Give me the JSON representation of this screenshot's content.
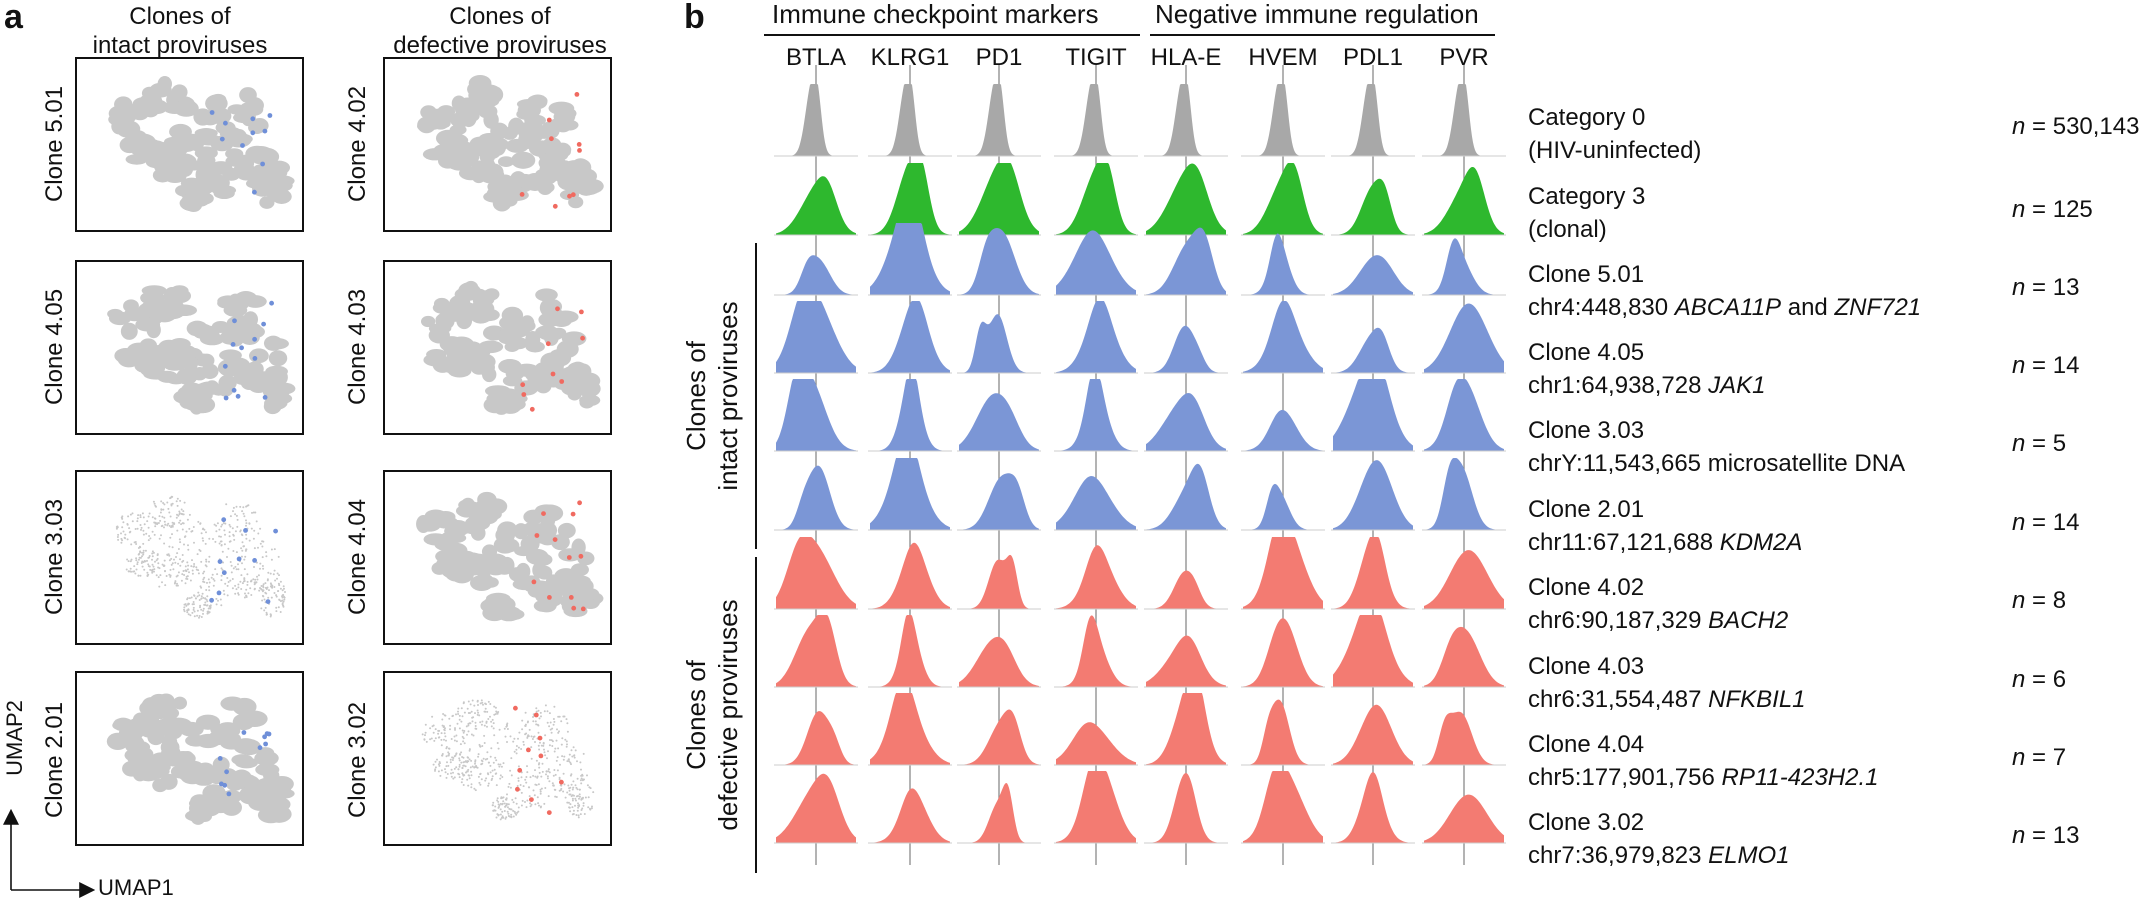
{
  "panel_a": {
    "letter": "a",
    "col_intact_title_1": "Clones of",
    "col_intact_title_2": "intact proviruses",
    "col_defective_title_1": "Clones of",
    "col_defective_title_2": "defective proviruses",
    "intact_clones": [
      "Clone 5.01",
      "Clone 4.05",
      "Clone 3.03",
      "Clone 2.01"
    ],
    "defective_clones": [
      "Clone 4.02",
      "Clone 4.03",
      "Clone 4.04",
      "Clone 3.02"
    ],
    "axis_x": "UMAP1",
    "axis_y": "UMAP2",
    "colors": {
      "background_cells": "#c8c8c8",
      "intact": "#6f8fd8",
      "defective": "#f06a60"
    }
  },
  "panel_b": {
    "letter": "b",
    "group_checkpoint": "Immune checkpoint markers",
    "group_negative": "Negative immune regulation",
    "markers": [
      "BTLA",
      "KLRG1",
      "PD1",
      "TIGIT",
      "HLA-E",
      "HVEM",
      "PDL1",
      "PVR"
    ],
    "side_intact_1": "Clones of",
    "side_intact_2": "intact proviruses",
    "side_defective_1": "Clones of",
    "side_defective_2": "defective proviruses",
    "n_symbol": "n",
    "rows": [
      {
        "line1": "Category 0",
        "line2_plain": "(HIV-uninfected)",
        "gene": "",
        "gene2": "",
        "n": "530,143",
        "color": "#a8a8a8"
      },
      {
        "line1": "Category 3",
        "line2_plain": "(clonal)",
        "gene": "",
        "gene2": "",
        "n": "125",
        "color": "#2eb82e"
      },
      {
        "line1": "Clone 5.01",
        "line2_plain": "chr4:448,830 ",
        "gene": "ABCA11P",
        "mid": " and ",
        "gene2": "ZNF721",
        "n": "13",
        "color": "#7b96d6"
      },
      {
        "line1": "Clone 4.05",
        "line2_plain": "chr1:64,938,728 ",
        "gene": "JAK1",
        "gene2": "",
        "n": "14",
        "color": "#7b96d6"
      },
      {
        "line1": "Clone 3.03",
        "line2_plain": "chrY:11,543,665 microsatellite DNA",
        "gene": "",
        "gene2": "",
        "n": "5",
        "color": "#7b96d6"
      },
      {
        "line1": "Clone 2.01",
        "line2_plain": "chr11:67,121,688 ",
        "gene": "KDM2A",
        "gene2": "",
        "n": "14",
        "color": "#7b96d6"
      },
      {
        "line1": "Clone 4.02",
        "line2_plain": "chr6:90,187,329 ",
        "gene": "BACH2",
        "gene2": "",
        "n": "8",
        "color": "#f37b72"
      },
      {
        "line1": "Clone 4.03",
        "line2_plain": "chr6:31,554,487 ",
        "gene": "NFKBIL1",
        "gene2": "",
        "n": "6",
        "color": "#f37b72"
      },
      {
        "line1": "Clone 4.04",
        "line2_plain": "chr5:177,901,756 ",
        "gene": "RP11-423H2.1",
        "gene2": "",
        "n": "7",
        "color": "#f37b72"
      },
      {
        "line1": "Clone 3.02",
        "line2_plain": "chr7:36,979,823 ",
        "gene": "ELMO1",
        "gene2": "",
        "n": "13",
        "color": "#f37b72"
      }
    ]
  }
}
